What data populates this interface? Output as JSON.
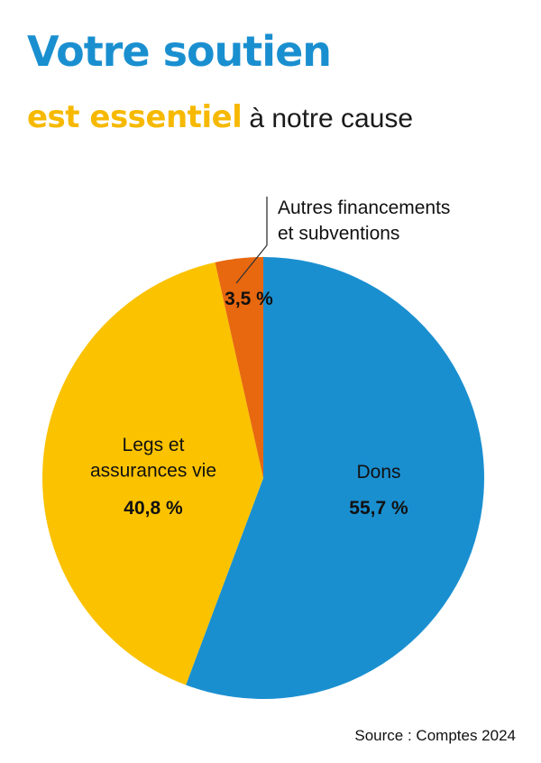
{
  "header": {
    "title_line1": "Votre soutien",
    "title_highlight": "est essentiel",
    "title_rest": "à notre cause"
  },
  "chart_data": {
    "type": "pie",
    "start_angle_deg": 0,
    "direction": "clockwise",
    "slices": [
      {
        "name": "Dons",
        "label_lines": [
          "Dons"
        ],
        "value": 55.7,
        "value_label": "55,7 %",
        "color": "#1a8fd0"
      },
      {
        "name": "Legs et assurances vie",
        "label_lines": [
          "Legs et",
          "assurances vie"
        ],
        "value": 40.8,
        "value_label": "40,8 %",
        "color": "#fbc200"
      },
      {
        "name": "Autres financements et subventions",
        "label_lines": [
          "Autres financements",
          "et subventions"
        ],
        "value": 3.5,
        "value_label": "3,5 %",
        "color": "#e8680f"
      }
    ]
  },
  "footer": {
    "source": "Source : Comptes 2024"
  }
}
